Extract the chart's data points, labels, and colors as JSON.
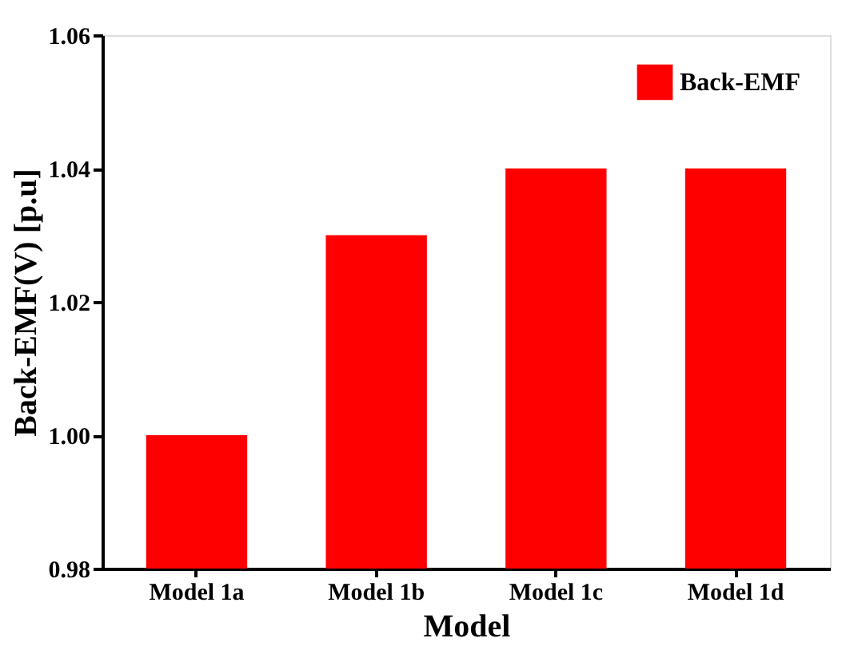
{
  "chart_data": {
    "type": "bar",
    "xlabel": "Model",
    "ylabel": "Back-EMF(V) [p.u]",
    "categories": [
      "Model 1a",
      "Model 1b",
      "Model 1c",
      "Model 1d"
    ],
    "series": [
      {
        "name": "Back-EMF",
        "color": "#ff0000",
        "values": [
          1.0,
          1.03,
          1.04,
          1.04
        ]
      }
    ],
    "ylim": [
      0.98,
      1.06
    ],
    "yticks": [
      0.98,
      {
        "value": 1.0,
        "label": "1.00"
      },
      1.02,
      1.04,
      1.06
    ],
    "grid": false,
    "legend": "top right"
  }
}
